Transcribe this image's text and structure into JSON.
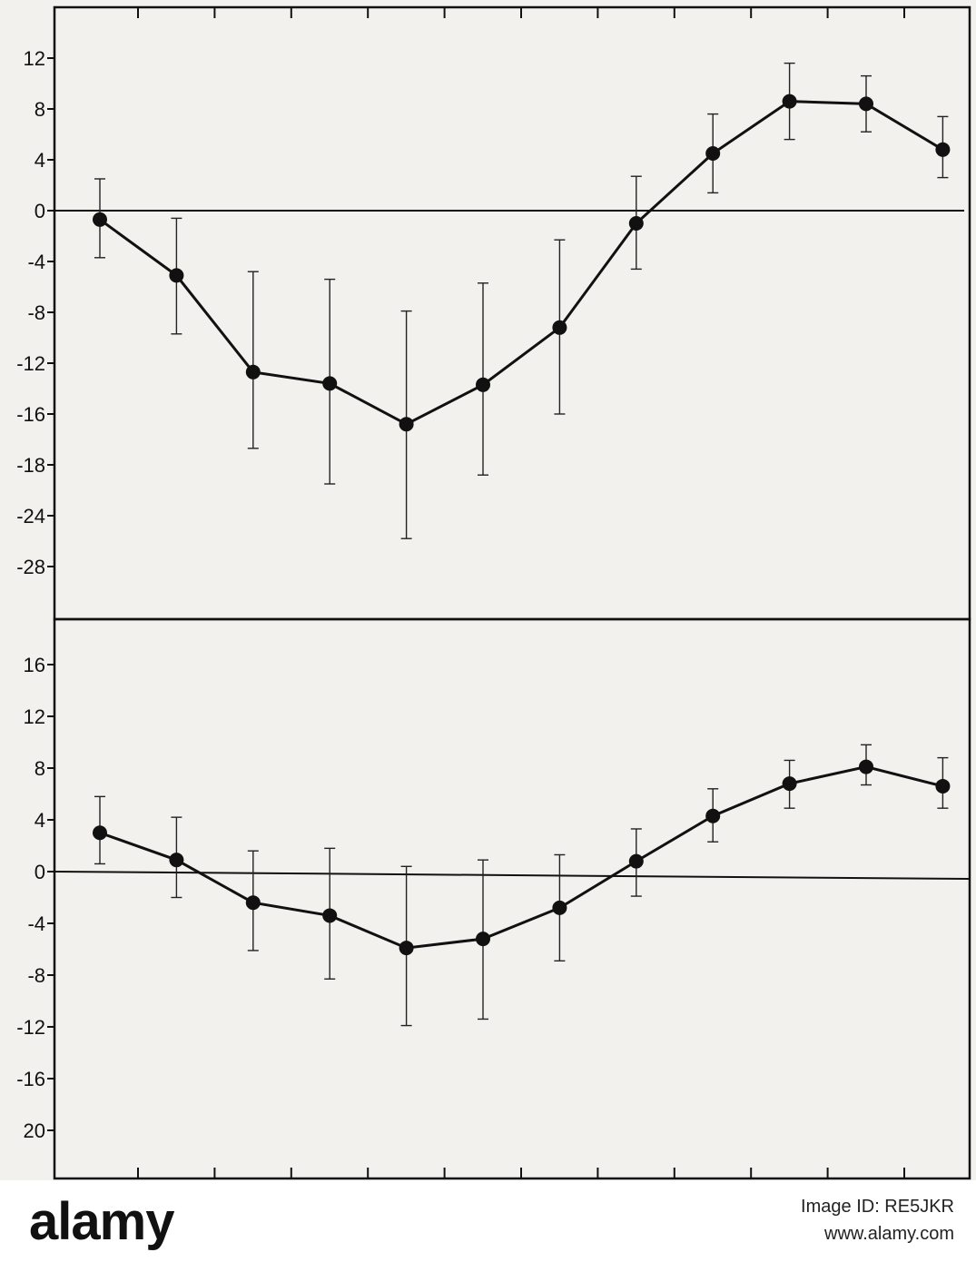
{
  "chart_data": [
    {
      "type": "line",
      "title": "",
      "xlabel": "",
      "ylabel": "",
      "y_ticks": [
        "12",
        "8",
        "4",
        "0",
        "-4",
        "-8",
        "-12",
        "-16",
        "-18",
        "-24",
        "-28"
      ],
      "ylim": [
        -31,
        15
      ],
      "x": [
        1,
        2,
        3,
        4,
        5,
        6,
        7,
        8,
        9,
        10,
        11,
        12
      ],
      "series": [
        {
          "values": [
            -0.7,
            -5.1,
            -12.7,
            -13.6,
            -16.8,
            -13.7,
            -9.2,
            -1.0,
            4.5,
            8.6,
            8.4,
            4.8
          ],
          "err_low": [
            -3.7,
            -9.7,
            -18.7,
            -21.5,
            -25.8,
            -20.8,
            -16.0,
            -4.6,
            1.4,
            5.6,
            6.2,
            2.6
          ],
          "err_high": [
            2.5,
            -0.6,
            -4.8,
            -5.4,
            -7.9,
            -5.7,
            -2.3,
            2.7,
            7.6,
            11.6,
            10.6,
            7.4
          ]
        }
      ],
      "grid": false,
      "zero_line": true
    },
    {
      "type": "line",
      "title": "",
      "xlabel": "",
      "ylabel": "",
      "y_ticks": [
        "16",
        "12",
        "8",
        "4",
        "0",
        "-4",
        "-8",
        "-12",
        "-16",
        "20"
      ],
      "ylim": [
        -23,
        19
      ],
      "x": [
        1,
        2,
        3,
        4,
        5,
        6,
        7,
        8,
        9,
        10,
        11,
        12
      ],
      "series": [
        {
          "values": [
            3.0,
            0.9,
            -2.4,
            -3.4,
            -5.9,
            -5.2,
            -2.8,
            0.8,
            4.3,
            6.8,
            8.1,
            6.6
          ],
          "err_low": [
            0.6,
            -2.0,
            -6.1,
            -8.3,
            -11.9,
            -11.4,
            -6.9,
            -1.9,
            2.3,
            4.9,
            6.7,
            4.9
          ],
          "err_high": [
            5.8,
            4.2,
            1.6,
            1.8,
            0.4,
            0.9,
            1.3,
            3.3,
            6.4,
            8.6,
            9.8,
            8.8
          ]
        }
      ],
      "grid": false,
      "zero_line": true
    }
  ],
  "watermark": {
    "logo_text": "alamy",
    "image_id": "Image ID: RE5JKR",
    "site": "www.alamy.com"
  },
  "colors": {
    "line": "#111111",
    "paper": "#f2f1ee"
  }
}
